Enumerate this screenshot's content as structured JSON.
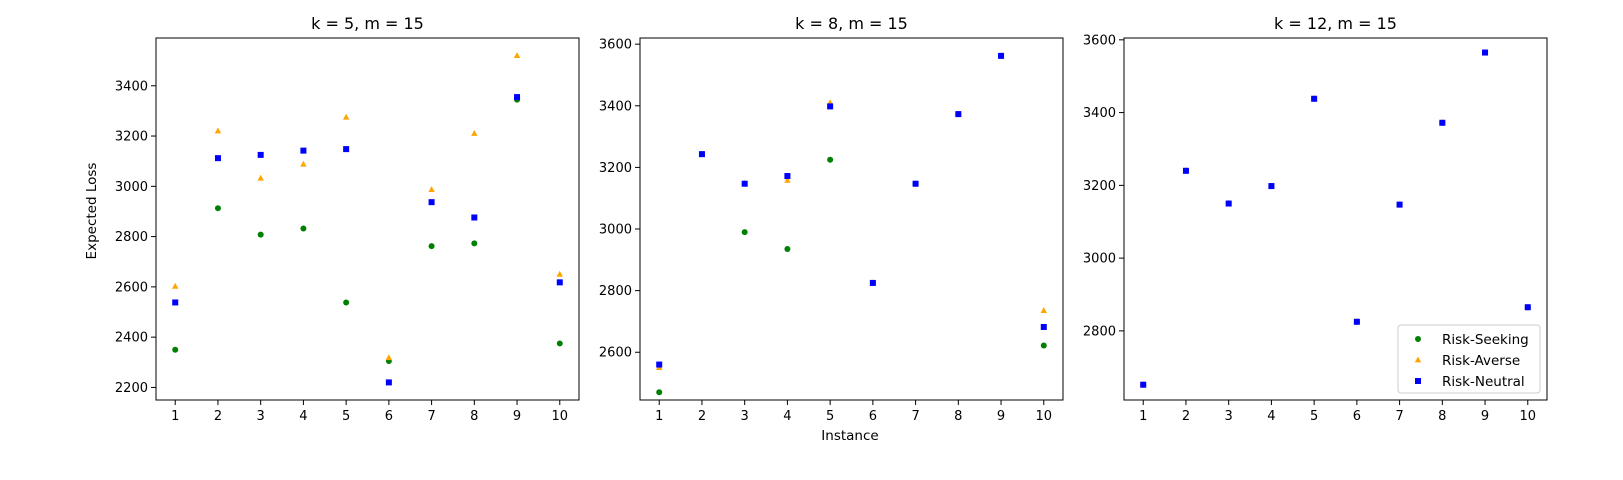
{
  "figure": {
    "xlabel": "Instance",
    "ylabel": "Expected Loss"
  },
  "legend": {
    "placement": "lower-right",
    "panel": 2,
    "entries": [
      {
        "name": "Risk-Seeking",
        "color": "#008000",
        "marker": "circle"
      },
      {
        "name": "Risk-Averse",
        "color": "#ffa500",
        "marker": "triangle"
      },
      {
        "name": "Risk-Neutral",
        "color": "#0000ff",
        "marker": "square"
      }
    ]
  },
  "chart_data": [
    {
      "type": "scatter",
      "title": "k = 5, m = 15",
      "xlabel": "",
      "ylabel": "Expected Loss",
      "x": [
        1,
        2,
        3,
        4,
        5,
        6,
        7,
        8,
        9,
        10
      ],
      "xticks": [
        "1",
        "2",
        "3",
        "4",
        "5",
        "6",
        "7",
        "8",
        "9",
        "10"
      ],
      "xlim": [
        0.55,
        10.45
      ],
      "ylim": [
        2150,
        3590
      ],
      "yticks": [
        2200,
        2400,
        2600,
        2800,
        3000,
        3200,
        3400
      ],
      "ytick_labels": [
        "2200",
        "2400",
        "2600",
        "2800",
        "3000",
        "3200",
        "3400"
      ],
      "series": [
        {
          "name": "Risk-Seeking",
          "values": [
            2350,
            2913,
            2808,
            2832,
            2538,
            2305,
            2762,
            2773,
            3345,
            2375
          ]
        },
        {
          "name": "Risk-Averse",
          "values": [
            2602,
            3220,
            3032,
            3088,
            3275,
            2318,
            2987,
            3210,
            3520,
            2650
          ]
        },
        {
          "name": "Risk-Neutral",
          "values": [
            2538,
            3112,
            3125,
            3142,
            3148,
            2220,
            2937,
            2876,
            3355,
            2618
          ]
        }
      ]
    },
    {
      "type": "scatter",
      "title": "k = 8, m = 15",
      "xlabel": "Instance",
      "ylabel": "",
      "x": [
        1,
        2,
        3,
        4,
        5,
        6,
        7,
        8,
        9,
        10
      ],
      "xticks": [
        "1",
        "2",
        "3",
        "4",
        "5",
        "6",
        "7",
        "8",
        "9",
        "10"
      ],
      "xlim": [
        0.55,
        10.45
      ],
      "ylim": [
        2445,
        3620
      ],
      "yticks": [
        2600,
        2800,
        3000,
        3200,
        3400,
        3600
      ],
      "ytick_labels": [
        "2600",
        "2800",
        "3000",
        "3200",
        "3400",
        "3600"
      ],
      "series": [
        {
          "name": "Risk-Seeking",
          "values": [
            2470,
            3243,
            2990,
            2935,
            3225,
            2825,
            3147,
            3373,
            3562,
            2622
          ]
        },
        {
          "name": "Risk-Averse",
          "values": [
            2550,
            3243,
            3148,
            3158,
            3410,
            2825,
            3147,
            3373,
            3562,
            2735
          ]
        },
        {
          "name": "Risk-Neutral",
          "values": [
            2560,
            3243,
            3147,
            3172,
            3398,
            2825,
            3147,
            3373,
            3562,
            2682
          ]
        }
      ]
    },
    {
      "type": "scatter",
      "title": "k = 12, m = 15",
      "xlabel": "",
      "ylabel": "",
      "x": [
        1,
        2,
        3,
        4,
        5,
        6,
        7,
        8,
        9,
        10
      ],
      "xticks": [
        "1",
        "2",
        "3",
        "4",
        "5",
        "6",
        "7",
        "8",
        "9",
        "10"
      ],
      "xlim": [
        0.55,
        10.45
      ],
      "ylim": [
        2610,
        3605
      ],
      "yticks": [
        2800,
        3000,
        3200,
        3400,
        3600
      ],
      "ytick_labels": [
        "2800",
        "3000",
        "3200",
        "3400",
        "3600"
      ],
      "series": [
        {
          "name": "Risk-Seeking",
          "values": [
            2652,
            3240,
            3150,
            3198,
            3438,
            2825,
            3147,
            3372,
            3565,
            2865
          ]
        },
        {
          "name": "Risk-Averse",
          "values": [
            2652,
            3240,
            3150,
            3198,
            3438,
            2825,
            3147,
            3372,
            3565,
            2865
          ]
        },
        {
          "name": "Risk-Neutral",
          "values": [
            2652,
            3240,
            3150,
            3198,
            3438,
            2825,
            3147,
            3372,
            3565,
            2865
          ]
        }
      ]
    }
  ]
}
